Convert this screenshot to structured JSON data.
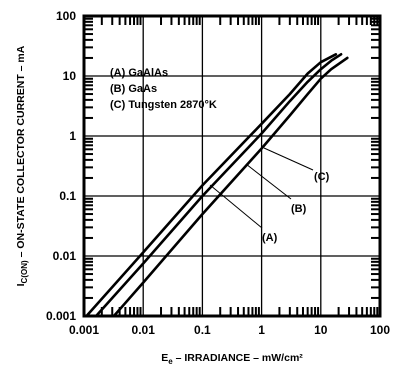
{
  "chart_data": {
    "type": "line",
    "xscale": "log",
    "yscale": "log",
    "xlim": [
      0.001,
      100
    ],
    "ylim": [
      0.001,
      100
    ],
    "grid": true,
    "xticks": [
      "0.001",
      "0.01",
      "0.1",
      "1",
      "10",
      "100"
    ],
    "yticks": [
      "0.001",
      "0.01",
      "0.1",
      "1",
      "10",
      "100"
    ],
    "xlabel_main": "E",
    "xlabel_sub": "e",
    "xlabel_rest": " – IRRADIANCE – mW/cm²",
    "ylabel_main": "I",
    "ylabel_sub": "C(ON)",
    "ylabel_rest": " – ON-STATE COLLECTOR CURRENT – mA",
    "legend": [
      "(A) GaAlAs",
      "(B) GaAs",
      "(C) Tungsten 2870°K"
    ],
    "series": [
      {
        "name": "(A)",
        "x": [
          0.0011,
          0.01,
          0.1,
          1,
          3,
          6,
          10,
          18
        ],
        "y": [
          0.001,
          0.0115,
          0.15,
          1.6,
          5,
          11,
          17,
          23
        ]
      },
      {
        "name": "(B)",
        "x": [
          0.0016,
          0.01,
          0.1,
          1,
          3,
          6,
          10,
          15,
          22
        ],
        "y": [
          0.001,
          0.0075,
          0.1,
          1.1,
          3.8,
          8,
          13,
          18,
          23
        ]
      },
      {
        "name": "(C)",
        "x": [
          0.0032,
          0.01,
          0.1,
          1,
          3,
          6,
          10,
          15,
          28
        ],
        "y": [
          0.001,
          0.0036,
          0.05,
          0.62,
          2.2,
          5,
          9,
          13,
          20
        ]
      }
    ],
    "callouts": [
      "(A)",
      "(B)",
      "(C)"
    ]
  }
}
